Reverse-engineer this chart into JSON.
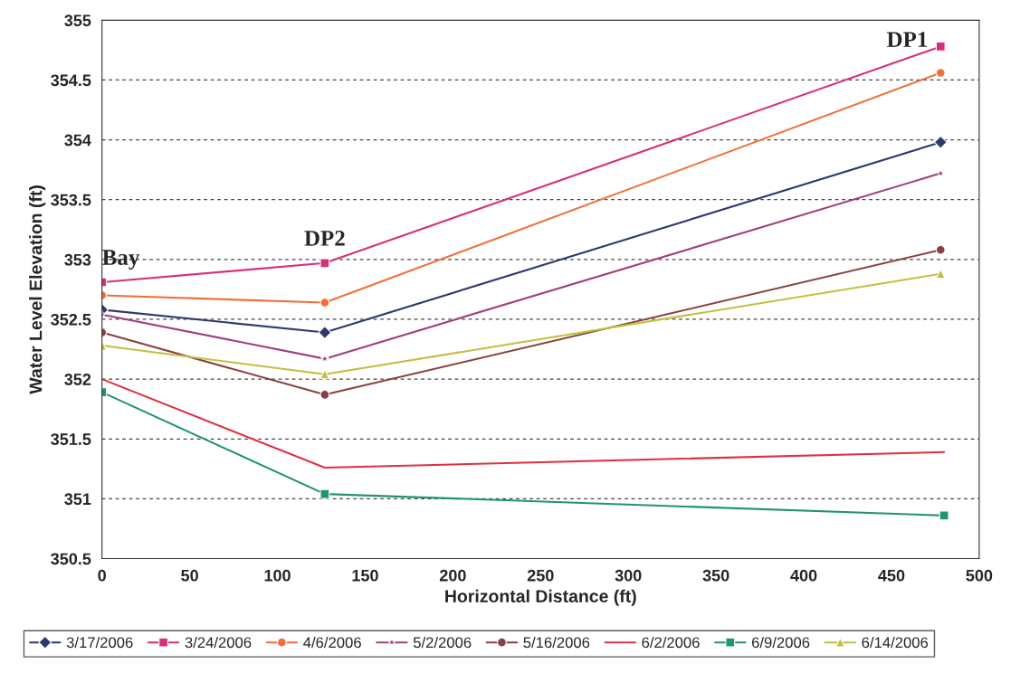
{
  "chart_data": {
    "type": "line",
    "xlabel": "Horizontal Distance (ft)",
    "ylabel": "Water Level Elevation (ft)",
    "xlim": [
      0,
      500
    ],
    "xticks": [
      0,
      50,
      100,
      150,
      200,
      250,
      300,
      350,
      400,
      450,
      500
    ],
    "ylim": [
      350.5,
      355
    ],
    "yticks": [
      350.5,
      351,
      351.5,
      352,
      352.5,
      353,
      353.5,
      354,
      354.5,
      355
    ],
    "grid": "y",
    "legend": "bottom",
    "annotations": [
      {
        "text": "Bay",
        "x": 0,
        "y": 352.81
      },
      {
        "text": "DP2",
        "x": 127,
        "y": 352.97
      },
      {
        "text": "DP1",
        "x": 478,
        "y": 354.78
      }
    ],
    "series": [
      {
        "name": "3/17/2006",
        "color": "#2e3a6e",
        "marker": "diamond",
        "x": [
          0,
          127,
          478
        ],
        "values": [
          352.58,
          352.39,
          353.98
        ]
      },
      {
        "name": "3/24/2006",
        "color": "#d6307a",
        "marker": "square",
        "x": [
          0,
          127,
          478
        ],
        "values": [
          352.81,
          352.97,
          354.78
        ]
      },
      {
        "name": "4/6/2006",
        "color": "#f0703c",
        "marker": "circle",
        "x": [
          0,
          127,
          478
        ],
        "values": [
          352.7,
          352.64,
          354.56
        ]
      },
      {
        "name": "5/2/2006",
        "color": "#a0407a",
        "marker": "star",
        "x": [
          0,
          127,
          478
        ],
        "values": [
          352.54,
          352.17,
          353.72
        ]
      },
      {
        "name": "5/16/2006",
        "color": "#8a4040",
        "marker": "circle",
        "x": [
          0,
          127,
          478
        ],
        "values": [
          352.39,
          351.87,
          353.08
        ]
      },
      {
        "name": "6/2/2006",
        "color": "#e03040",
        "marker": "none",
        "x": [
          0,
          127,
          480
        ],
        "values": [
          352.0,
          351.26,
          351.39
        ]
      },
      {
        "name": "6/9/2006",
        "color": "#20956e",
        "marker": "square",
        "x": [
          0,
          127,
          480
        ],
        "values": [
          351.89,
          351.04,
          350.86
        ]
      },
      {
        "name": "6/14/2006",
        "color": "#c0c040",
        "marker": "triangle",
        "x": [
          0,
          127,
          478
        ],
        "values": [
          352.28,
          352.04,
          352.88
        ]
      }
    ]
  }
}
